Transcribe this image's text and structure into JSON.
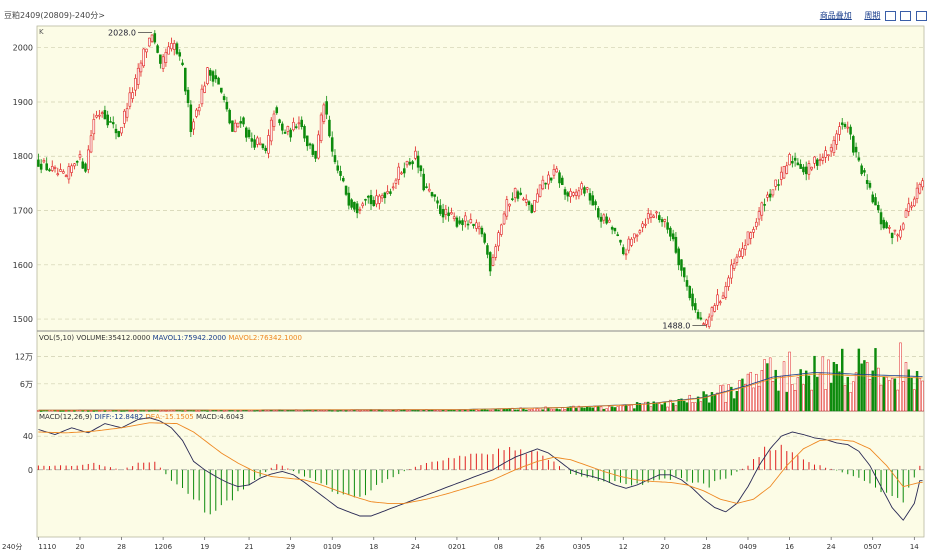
{
  "header": {
    "title": "豆粕2409(20809)-240分>",
    "toolbar": [
      "商品叠加",
      "周期"
    ]
  },
  "colors": {
    "background": "#fcfce6",
    "up": "#e02020",
    "down": "#0c8a0c",
    "diff": "#2a2a55",
    "dea": "#ee8822",
    "mavol2": "#ee8822"
  },
  "chart_data": [
    {
      "type": "candlestick",
      "panel": "price",
      "corner_label": "K",
      "yticks": [
        2000,
        1900,
        1800,
        1700,
        1600,
        1500
      ],
      "ylim": [
        1478,
        2040
      ],
      "annotations": [
        {
          "text": "2028.0",
          "value": 2028.0
        },
        {
          "text": "1488.0",
          "value": 1488.0
        }
      ],
      "path": [
        [
          0,
          1790
        ],
        [
          6,
          1770
        ],
        [
          10,
          1760
        ],
        [
          14,
          1800
        ],
        [
          17,
          1780
        ],
        [
          20,
          1870
        ],
        [
          23,
          1885
        ],
        [
          26,
          1860
        ],
        [
          29,
          1840
        ],
        [
          32,
          1895
        ],
        [
          35,
          1935
        ],
        [
          38,
          1990
        ],
        [
          41,
          2028
        ],
        [
          44,
          1960
        ],
        [
          46,
          1990
        ],
        [
          49,
          2005
        ],
        [
          52,
          1960
        ],
        [
          55,
          1855
        ],
        [
          58,
          1900
        ],
        [
          61,
          1955
        ],
        [
          64,
          1945
        ],
        [
          67,
          1900
        ],
        [
          70,
          1845
        ],
        [
          73,
          1870
        ],
        [
          76,
          1830
        ],
        [
          79,
          1825
        ],
        [
          82,
          1805
        ],
        [
          85,
          1885
        ],
        [
          88,
          1845
        ],
        [
          91,
          1845
        ],
        [
          94,
          1870
        ],
        [
          97,
          1825
        ],
        [
          100,
          1800
        ],
        [
          103,
          1900
        ],
        [
          106,
          1800
        ],
        [
          109,
          1760
        ],
        [
          112,
          1720
        ],
        [
          115,
          1705
        ],
        [
          118,
          1730
        ],
        [
          121,
          1710
        ],
        [
          124,
          1730
        ],
        [
          127,
          1740
        ],
        [
          130,
          1770
        ],
        [
          133,
          1785
        ],
        [
          136,
          1800
        ],
        [
          139,
          1745
        ],
        [
          142,
          1725
        ],
        [
          145,
          1700
        ],
        [
          148,
          1690
        ],
        [
          151,
          1680
        ],
        [
          154,
          1680
        ],
        [
          157,
          1670
        ],
        [
          160,
          1660
        ],
        [
          163,
          1598
        ],
        [
          166,
          1660
        ],
        [
          169,
          1710
        ],
        [
          172,
          1735
        ],
        [
          175,
          1720
        ],
        [
          178,
          1700
        ],
        [
          181,
          1740
        ],
        [
          184,
          1760
        ],
        [
          187,
          1770
        ],
        [
          190,
          1730
        ],
        [
          193,
          1725
        ],
        [
          196,
          1745
        ],
        [
          199,
          1725
        ],
        [
          202,
          1690
        ],
        [
          205,
          1680
        ],
        [
          208,
          1660
        ],
        [
          211,
          1620
        ],
        [
          214,
          1645
        ],
        [
          217,
          1670
        ],
        [
          220,
          1690
        ],
        [
          223,
          1695
        ],
        [
          226,
          1675
        ],
        [
          229,
          1650
        ],
        [
          232,
          1590
        ],
        [
          235,
          1545
        ],
        [
          238,
          1500
        ],
        [
          241,
          1488
        ],
        [
          244,
          1530
        ],
        [
          247,
          1545
        ],
        [
          250,
          1590
        ],
        [
          253,
          1620
        ],
        [
          256,
          1650
        ],
        [
          259,
          1680
        ],
        [
          262,
          1720
        ],
        [
          265,
          1740
        ],
        [
          268,
          1760
        ],
        [
          271,
          1795
        ],
        [
          274,
          1790
        ],
        [
          277,
          1770
        ],
        [
          280,
          1790
        ],
        [
          283,
          1800
        ],
        [
          286,
          1810
        ],
        [
          289,
          1860
        ],
        [
          292,
          1850
        ],
        [
          295,
          1800
        ],
        [
          298,
          1760
        ],
        [
          301,
          1720
        ],
        [
          304,
          1680
        ],
        [
          307,
          1660
        ],
        [
          310,
          1655
        ],
        [
          313,
          1700
        ],
        [
          316,
          1720
        ],
        [
          318,
          1745
        ]
      ]
    },
    {
      "type": "bar",
      "panel": "volume",
      "indicator_label": "VOL(5,10)",
      "legend": [
        {
          "text": "VOLUME:35412.0000"
        },
        {
          "text": "MAVOL1:75942.2000"
        },
        {
          "text": "MAVOL2:76342.1000"
        }
      ],
      "yticks": [
        {
          "value": 120000,
          "label": "12万"
        },
        {
          "value": 60000,
          "label": "6万"
        }
      ],
      "ylim": [
        0,
        150000
      ],
      "path": [
        [
          0,
          1500
        ],
        [
          100,
          2500
        ],
        [
          160,
          3000
        ],
        [
          170,
          5000
        ],
        [
          185,
          8000
        ],
        [
          200,
          10000
        ],
        [
          215,
          15000
        ],
        [
          230,
          22000
        ],
        [
          240,
          35000
        ],
        [
          250,
          60000
        ],
        [
          260,
          90000
        ],
        [
          270,
          105000
        ],
        [
          280,
          110000
        ],
        [
          290,
          118000
        ],
        [
          300,
          112000
        ],
        [
          310,
          125000
        ],
        [
          318,
          100000
        ]
      ],
      "ma_path": [
        [
          0,
          2000
        ],
        [
          150,
          3000
        ],
        [
          190,
          8000
        ],
        [
          220,
          16000
        ],
        [
          240,
          30000
        ],
        [
          255,
          55000
        ],
        [
          265,
          75000
        ],
        [
          280,
          85000
        ],
        [
          300,
          80000
        ],
        [
          318,
          76000
        ]
      ]
    },
    {
      "type": "macd",
      "panel": "macd",
      "indicator_label": "MACD(12,26,9)",
      "legend": [
        {
          "text": "DIFF:-12.8482"
        },
        {
          "text": "DEA:-15.1505"
        },
        {
          "text": "MACD:4.6043"
        }
      ],
      "yticks": [
        40,
        0
      ],
      "ylim": [
        -80,
        70
      ],
      "diff_path": [
        [
          0,
          48
        ],
        [
          6,
          42
        ],
        [
          12,
          50
        ],
        [
          18,
          44
        ],
        [
          24,
          55
        ],
        [
          30,
          50
        ],
        [
          36,
          60
        ],
        [
          40,
          62
        ],
        [
          44,
          58
        ],
        [
          48,
          50
        ],
        [
          52,
          35
        ],
        [
          56,
          10
        ],
        [
          60,
          0
        ],
        [
          64,
          -8
        ],
        [
          68,
          -15
        ],
        [
          72,
          -20
        ],
        [
          76,
          -18
        ],
        [
          80,
          -10
        ],
        [
          84,
          -5
        ],
        [
          88,
          -2
        ],
        [
          92,
          -6
        ],
        [
          96,
          -15
        ],
        [
          100,
          -25
        ],
        [
          104,
          -35
        ],
        [
          108,
          -45
        ],
        [
          112,
          -50
        ],
        [
          116,
          -55
        ],
        [
          120,
          -55
        ],
        [
          124,
          -50
        ],
        [
          128,
          -45
        ],
        [
          132,
          -40
        ],
        [
          136,
          -35
        ],
        [
          140,
          -30
        ],
        [
          144,
          -25
        ],
        [
          148,
          -20
        ],
        [
          152,
          -15
        ],
        [
          156,
          -10
        ],
        [
          160,
          -5
        ],
        [
          164,
          0
        ],
        [
          168,
          8
        ],
        [
          172,
          15
        ],
        [
          176,
          20
        ],
        [
          180,
          25
        ],
        [
          184,
          20
        ],
        [
          188,
          10
        ],
        [
          192,
          0
        ],
        [
          196,
          -5
        ],
        [
          200,
          -8
        ],
        [
          204,
          -12
        ],
        [
          208,
          -18
        ],
        [
          212,
          -22
        ],
        [
          216,
          -18
        ],
        [
          220,
          -12
        ],
        [
          224,
          -6
        ],
        [
          228,
          -6
        ],
        [
          232,
          -12
        ],
        [
          236,
          -22
        ],
        [
          240,
          -35
        ],
        [
          244,
          -45
        ],
        [
          248,
          -50
        ],
        [
          252,
          -40
        ],
        [
          256,
          -20
        ],
        [
          260,
          5
        ],
        [
          264,
          25
        ],
        [
          268,
          40
        ],
        [
          272,
          45
        ],
        [
          276,
          42
        ],
        [
          280,
          38
        ],
        [
          284,
          36
        ],
        [
          288,
          32
        ],
        [
          292,
          30
        ],
        [
          296,
          22
        ],
        [
          300,
          5
        ],
        [
          304,
          -20
        ],
        [
          308,
          -45
        ],
        [
          312,
          -60
        ],
        [
          316,
          -40
        ],
        [
          318,
          -13
        ]
      ],
      "dea_path": [
        [
          0,
          45
        ],
        [
          10,
          44
        ],
        [
          20,
          46
        ],
        [
          30,
          50
        ],
        [
          40,
          56
        ],
        [
          50,
          55
        ],
        [
          56,
          45
        ],
        [
          60,
          35
        ],
        [
          66,
          20
        ],
        [
          72,
          8
        ],
        [
          78,
          -2
        ],
        [
          84,
          -8
        ],
        [
          90,
          -10
        ],
        [
          96,
          -12
        ],
        [
          102,
          -18
        ],
        [
          108,
          -25
        ],
        [
          114,
          -32
        ],
        [
          120,
          -38
        ],
        [
          126,
          -40
        ],
        [
          132,
          -40
        ],
        [
          140,
          -35
        ],
        [
          148,
          -28
        ],
        [
          156,
          -20
        ],
        [
          164,
          -12
        ],
        [
          172,
          0
        ],
        [
          180,
          10
        ],
        [
          186,
          15
        ],
        [
          192,
          12
        ],
        [
          198,
          5
        ],
        [
          204,
          -2
        ],
        [
          210,
          -8
        ],
        [
          216,
          -12
        ],
        [
          222,
          -14
        ],
        [
          228,
          -15
        ],
        [
          234,
          -18
        ],
        [
          240,
          -25
        ],
        [
          246,
          -35
        ],
        [
          252,
          -40
        ],
        [
          258,
          -35
        ],
        [
          264,
          -20
        ],
        [
          270,
          5
        ],
        [
          276,
          25
        ],
        [
          282,
          35
        ],
        [
          288,
          36
        ],
        [
          294,
          34
        ],
        [
          300,
          25
        ],
        [
          306,
          5
        ],
        [
          312,
          -20
        ],
        [
          318,
          -15
        ]
      ],
      "hist_path": [
        [
          0,
          5
        ],
        [
          10,
          5
        ],
        [
          20,
          8
        ],
        [
          30,
          0
        ],
        [
          36,
          8
        ],
        [
          42,
          10
        ],
        [
          50,
          -20
        ],
        [
          56,
          -40
        ],
        [
          62,
          -50
        ],
        [
          70,
          -35
        ],
        [
          80,
          -8
        ],
        [
          86,
          8
        ],
        [
          94,
          -5
        ],
        [
          100,
          -15
        ],
        [
          106,
          -25
        ],
        [
          114,
          -35
        ],
        [
          122,
          -20
        ],
        [
          130,
          -5
        ],
        [
          140,
          10
        ],
        [
          150,
          15
        ],
        [
          160,
          20
        ],
        [
          170,
          25
        ],
        [
          180,
          22
        ],
        [
          186,
          10
        ],
        [
          192,
          -5
        ],
        [
          198,
          -10
        ],
        [
          206,
          -15
        ],
        [
          214,
          -20
        ],
        [
          222,
          -15
        ],
        [
          230,
          -10
        ],
        [
          236,
          -15
        ],
        [
          242,
          -20
        ],
        [
          248,
          -10
        ],
        [
          256,
          5
        ],
        [
          262,
          25
        ],
        [
          268,
          30
        ],
        [
          272,
          25
        ],
        [
          276,
          12
        ],
        [
          282,
          5
        ],
        [
          292,
          -5
        ],
        [
          300,
          -15
        ],
        [
          306,
          -30
        ],
        [
          312,
          -40
        ],
        [
          318,
          5
        ]
      ]
    }
  ],
  "xaxis": {
    "corner_label": "240分",
    "ticks": [
      {
        "label": "1110",
        "index": 0
      },
      {
        "label": "20",
        "index": 15
      },
      {
        "label": "28",
        "index": 30
      },
      {
        "label": "1206",
        "index": 45
      },
      {
        "label": "19",
        "index": 60
      },
      {
        "label": "21",
        "index": 76
      },
      {
        "label": "29",
        "index": 91
      },
      {
        "label": "0109",
        "index": 106
      },
      {
        "label": "18",
        "index": 121
      },
      {
        "label": "24",
        "index": 136
      },
      {
        "label": "0201",
        "index": 151
      },
      {
        "label": "08",
        "index": 166
      },
      {
        "label": "26",
        "index": 181
      },
      {
        "label": "0305",
        "index": 196
      },
      {
        "label": "12",
        "index": 211
      },
      {
        "label": "20",
        "index": 226
      },
      {
        "label": "28",
        "index": 241
      },
      {
        "label": "0409",
        "index": 256
      },
      {
        "label": "16",
        "index": 271
      },
      {
        "label": "24",
        "index": 286
      },
      {
        "label": "0507",
        "index": 301
      },
      {
        "label": "14",
        "index": 316
      }
    ]
  }
}
